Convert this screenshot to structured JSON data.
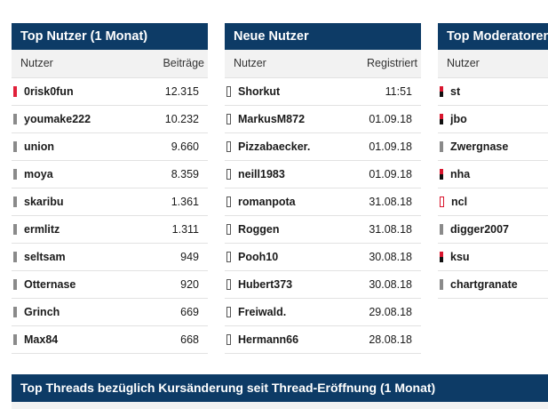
{
  "top_users": {
    "title": "Top Nutzer (1 Monat)",
    "col_user": "Nutzer",
    "col_value": "Beiträge",
    "rows": [
      {
        "name": "0risk0fun",
        "value": "12.315",
        "marker": "red"
      },
      {
        "name": "youmake222",
        "value": "10.232",
        "marker": "gray"
      },
      {
        "name": "union",
        "value": "9.660",
        "marker": "gray"
      },
      {
        "name": "moya",
        "value": "8.359",
        "marker": "gray"
      },
      {
        "name": "skaribu",
        "value": "1.361",
        "marker": "gray"
      },
      {
        "name": "ermlitz",
        "value": "1.311",
        "marker": "gray"
      },
      {
        "name": "seltsam",
        "value": "949",
        "marker": "gray"
      },
      {
        "name": "Otternase",
        "value": "920",
        "marker": "gray"
      },
      {
        "name": "Grinch",
        "value": "669",
        "marker": "gray"
      },
      {
        "name": "Max84",
        "value": "668",
        "marker": "gray"
      }
    ]
  },
  "new_users": {
    "title": "Neue Nutzer",
    "col_user": "Nutzer",
    "col_value": "Registriert",
    "rows": [
      {
        "name": "Shorkut",
        "value": "11:51",
        "marker": "outline"
      },
      {
        "name": "MarkusM872",
        "value": "01.09.18",
        "marker": "outline"
      },
      {
        "name": "Pizzabaecker.",
        "value": "01.09.18",
        "marker": "outline"
      },
      {
        "name": "neill1983",
        "value": "01.09.18",
        "marker": "outline"
      },
      {
        "name": "romanpota",
        "value": "31.08.18",
        "marker": "outline"
      },
      {
        "name": "Roggen",
        "value": "31.08.18",
        "marker": "outline"
      },
      {
        "name": "Pooh10",
        "value": "30.08.18",
        "marker": "outline"
      },
      {
        "name": "Hubert373",
        "value": "30.08.18",
        "marker": "outline"
      },
      {
        "name": "Freiwald.",
        "value": "29.08.18",
        "marker": "outline"
      },
      {
        "name": "Hermann66",
        "value": "28.08.18",
        "marker": "outline"
      }
    ]
  },
  "top_moderators": {
    "title": "Top Moderatoren",
    "col_user": "Nutzer",
    "rows": [
      {
        "name": "st",
        "marker": "mod"
      },
      {
        "name": "jbo",
        "marker": "mod"
      },
      {
        "name": "Zwergnase",
        "marker": "gray"
      },
      {
        "name": "nha",
        "marker": "mod"
      },
      {
        "name": "ncl",
        "marker": "mod-outline"
      },
      {
        "name": "digger2007",
        "marker": "gray"
      },
      {
        "name": "ksu",
        "marker": "mod"
      },
      {
        "name": "chartgranate",
        "marker": "gray"
      }
    ]
  },
  "top_threads": {
    "title": "Top Threads bezüglich Kursänderung seit Thread-Eröffnung (1 Monat)"
  }
}
